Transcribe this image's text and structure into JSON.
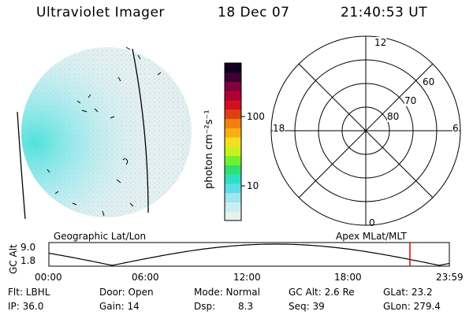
{
  "header": {
    "instrument": "Ultraviolet Imager",
    "date": "18 Dec 07",
    "time": "21:40:53 UT"
  },
  "colorbar": {
    "unit_label": "photon cm⁻²s⁻¹",
    "tick_100": "100",
    "tick_10": "10",
    "colors": [
      "#e8f0f0",
      "#c8eef2",
      "#9fe6ee",
      "#5fdce8",
      "#2fe0c0",
      "#30e070",
      "#70f030",
      "#c8f020",
      "#f0e020",
      "#f8b010",
      "#f08010",
      "#e04010",
      "#d01020",
      "#b00030",
      "#800040",
      "#400030",
      "#100020"
    ]
  },
  "polar": {
    "mlt_top": "12",
    "mlt_left": "18",
    "mlt_right": "6",
    "mlt_bottom": "0",
    "lat_60": "60",
    "lat_70": "70",
    "lat_80": "80"
  },
  "labels": {
    "geo": "Geographic Lat/Lon",
    "apex": "Apex MLat/MLT"
  },
  "altplot": {
    "axis_title": "GC Alt",
    "y_top": "9.0",
    "y_bottom": "1.8",
    "x_ticks": [
      "00:00",
      "06:00",
      "12:00",
      "18:00",
      "23:59"
    ],
    "marker_color": "#e00000"
  },
  "info": {
    "flt": "Flt: LBHL",
    "ip": "IP: 36.0",
    "door": "Door: Open",
    "gain": "Gain: 14",
    "mode": "Mode: Normal",
    "dsp_label": "Dsp:",
    "dsp_value": "8.3",
    "gcalt": "GC Alt: 2.6 Re",
    "seq": "Seq: 39",
    "glat": "GLat:  23.2",
    "glon": "GLon: 279.4"
  }
}
